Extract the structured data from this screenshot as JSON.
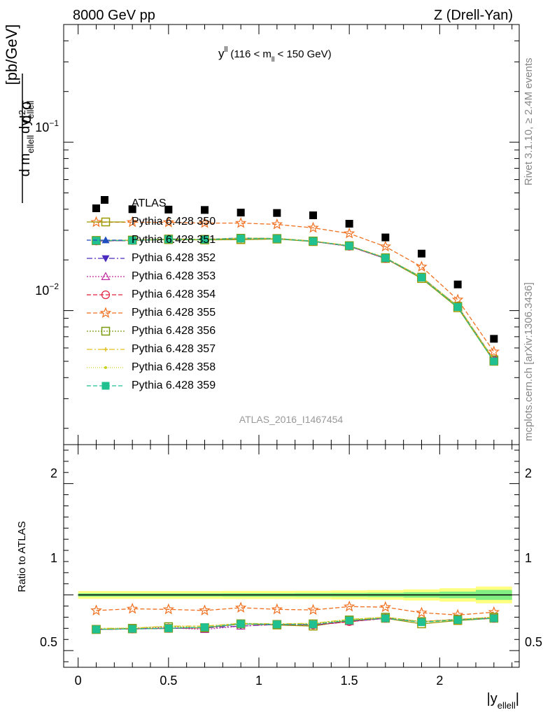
{
  "header": {
    "left": "8000 GeV pp",
    "right": "Z (Drell-Yan)"
  },
  "side_labels": {
    "rivet": "Rivet 3.1.10, ≥ 2.4M events",
    "mcplots": "mcplots.cern.ch [arXiv:1306.3436]"
  },
  "chart_data": [
    {
      "type": "scatter",
      "panel": "main",
      "title": "y",
      "title_sup": "ll",
      "title_cond": "(116 < m",
      "title_cond_sub": "ll",
      "title_cond_end": " < 150 GeV)",
      "watermark": "ATLAS_2016_I1467454",
      "ylabel_parts": {
        "d2": "d",
        "sup2": "2",
        "sigma": "σ",
        "den_d1": "d m",
        "den_sub1": "ellell",
        "den_d2": "dy",
        "den_sub2": "ellell",
        "units": "[pb/GeV]"
      },
      "y_scale": "log",
      "ylim": [
        0.0016,
        0.5
      ],
      "xlim": [
        -0.08,
        2.44
      ],
      "y_tick_labels": [
        {
          "value": 0.1,
          "base": "10",
          "exp": "−1"
        },
        {
          "value": 0.01,
          "base": "10",
          "exp": "−2"
        }
      ],
      "x": [
        0.1,
        0.3,
        0.5,
        0.7,
        0.9,
        1.1,
        1.3,
        1.5,
        1.7,
        1.9,
        2.1,
        2.3
      ],
      "data": {
        "name": "ATLAS",
        "color": "#000000",
        "values": [
          0.0405,
          0.04,
          0.0398,
          0.0396,
          0.0382,
          0.038,
          0.0368,
          0.0328,
          0.0272,
          0.0218,
          0.0143,
          0.0068
        ]
      },
      "series": [
        {
          "name": "Pythia 6.428 350",
          "color": "#9a9a00",
          "marker": "square-open",
          "dash": "solid",
          "values": [
            0.026,
            0.0262,
            0.0264,
            0.0263,
            0.0264,
            0.0266,
            0.0257,
            0.0242,
            0.0204,
            0.0155,
            0.0104,
            0.005
          ]
        },
        {
          "name": "Pythia 6.428 351",
          "color": "#1f4fbf",
          "marker": "triangle-up",
          "dash": "6,3",
          "values": [
            0.0259,
            0.0261,
            0.0266,
            0.0265,
            0.027,
            0.0268,
            0.0258,
            0.0241,
            0.0204,
            0.0158,
            0.0106,
            0.0051
          ]
        },
        {
          "name": "Pythia 6.428 352",
          "color": "#4b2bbf",
          "marker": "triangle-down",
          "dash": "8,3,2,3",
          "values": [
            0.0259,
            0.0261,
            0.0266,
            0.0265,
            0.0268,
            0.0268,
            0.0258,
            0.0241,
            0.0204,
            0.0158,
            0.0106,
            0.0051
          ]
        },
        {
          "name": "Pythia 6.428 353",
          "color": "#bf2ba0",
          "marker": "triangle-up-open",
          "dash": "2,2",
          "values": [
            0.0259,
            0.0261,
            0.0266,
            0.0265,
            0.0268,
            0.0268,
            0.0258,
            0.0241,
            0.0204,
            0.0158,
            0.0106,
            0.0051
          ]
        },
        {
          "name": "Pythia 6.428 354",
          "color": "#e0203a",
          "marker": "circle-open",
          "dash": "6,3",
          "values": [
            0.0259,
            0.0261,
            0.0266,
            0.0265,
            0.0268,
            0.0268,
            0.0258,
            0.0241,
            0.0204,
            0.0158,
            0.0106,
            0.0051
          ]
        },
        {
          "name": "Pythia 6.428 355",
          "color": "#f07020",
          "marker": "star-open",
          "dash": "6,3",
          "values": [
            0.0335,
            0.0335,
            0.0334,
            0.0331,
            0.0331,
            0.0325,
            0.031,
            0.0287,
            0.024,
            0.0182,
            0.0116,
            0.0057
          ]
        },
        {
          "name": "Pythia 6.428 356",
          "color": "#7a9a10",
          "marker": "square-open",
          "dash": "2,2",
          "values": [
            0.0261,
            0.0262,
            0.0266,
            0.0265,
            0.0269,
            0.0268,
            0.0259,
            0.0243,
            0.0206,
            0.0158,
            0.0106,
            0.0051
          ]
        },
        {
          "name": "Pythia 6.428 357",
          "color": "#e0c020",
          "marker": "cross-small",
          "dash": "8,3,2,3",
          "values": [
            0.0261,
            0.0262,
            0.0266,
            0.0265,
            0.0269,
            0.0268,
            0.0259,
            0.0243,
            0.0206,
            0.0158,
            0.0106,
            0.0051
          ]
        },
        {
          "name": "Pythia 6.428 358",
          "color": "#c8d020",
          "marker": "dot",
          "dash": "1,2",
          "values": [
            0.0261,
            0.0262,
            0.0266,
            0.0265,
            0.0269,
            0.0268,
            0.0259,
            0.0243,
            0.0206,
            0.0158,
            0.0106,
            0.0051
          ]
        },
        {
          "name": "Pythia 6.428 359",
          "color": "#20c090",
          "marker": "square",
          "dash": "6,3",
          "values": [
            0.026,
            0.0261,
            0.0265,
            0.0264,
            0.0268,
            0.0267,
            0.0258,
            0.0242,
            0.0205,
            0.0157,
            0.0105,
            0.005
          ]
        }
      ]
    },
    {
      "type": "scatter",
      "panel": "ratio",
      "ylabel": "Ratio to ATLAS",
      "xlabel_main": "|y",
      "xlabel_sub": "ellell",
      "xlabel_end": "|",
      "ylim": [
        0.35,
        2.35
      ],
      "xlim": [
        -0.08,
        2.44
      ],
      "x_tick_labels": [
        "0",
        "0.5",
        "1",
        "1.5",
        "2"
      ],
      "x_tick_values": [
        0,
        0.5,
        1,
        1.5,
        2
      ],
      "y_tick_labels": [
        "0.5",
        "1",
        "2"
      ],
      "y_tick_values": [
        0.5,
        1,
        2
      ],
      "band_inner": [
        0.015,
        0.015,
        0.015,
        0.015,
        0.016,
        0.016,
        0.017,
        0.018,
        0.02,
        0.024,
        0.03,
        0.045
      ],
      "band_outer": [
        0.035,
        0.035,
        0.035,
        0.035,
        0.036,
        0.036,
        0.037,
        0.04,
        0.043,
        0.05,
        0.06,
        0.075
      ],
      "series_ratio": [
        [
          0.69,
          0.695,
          0.7,
          0.705,
          0.74,
          0.73,
          0.72,
          0.77,
          0.79,
          0.74,
          0.77,
          0.79
        ],
        [
          0.69,
          0.695,
          0.7,
          0.705,
          0.74,
          0.735,
          0.73,
          0.76,
          0.79,
          0.76,
          0.78,
          0.79
        ],
        [
          0.69,
          0.695,
          0.7,
          0.705,
          0.72,
          0.735,
          0.73,
          0.76,
          0.79,
          0.76,
          0.78,
          0.79
        ],
        [
          0.69,
          0.695,
          0.705,
          0.69,
          0.72,
          0.735,
          0.73,
          0.76,
          0.79,
          0.76,
          0.78,
          0.79
        ],
        [
          0.69,
          0.695,
          0.7,
          0.705,
          0.74,
          0.735,
          0.73,
          0.76,
          0.79,
          0.76,
          0.78,
          0.79
        ],
        [
          0.86,
          0.875,
          0.87,
          0.86,
          0.885,
          0.87,
          0.865,
          0.895,
          0.89,
          0.84,
          0.82,
          0.845
        ],
        [
          0.69,
          0.7,
          0.715,
          0.705,
          0.74,
          0.735,
          0.74,
          0.775,
          0.8,
          0.76,
          0.78,
          0.8
        ],
        [
          0.7,
          0.7,
          0.72,
          0.72,
          0.745,
          0.74,
          0.745,
          0.78,
          0.8,
          0.76,
          0.78,
          0.8
        ],
        [
          0.7,
          0.705,
          0.72,
          0.72,
          0.745,
          0.74,
          0.745,
          0.78,
          0.8,
          0.76,
          0.78,
          0.8
        ],
        [
          0.69,
          0.695,
          0.7,
          0.71,
          0.74,
          0.735,
          0.735,
          0.77,
          0.79,
          0.755,
          0.775,
          0.79
        ]
      ]
    }
  ]
}
